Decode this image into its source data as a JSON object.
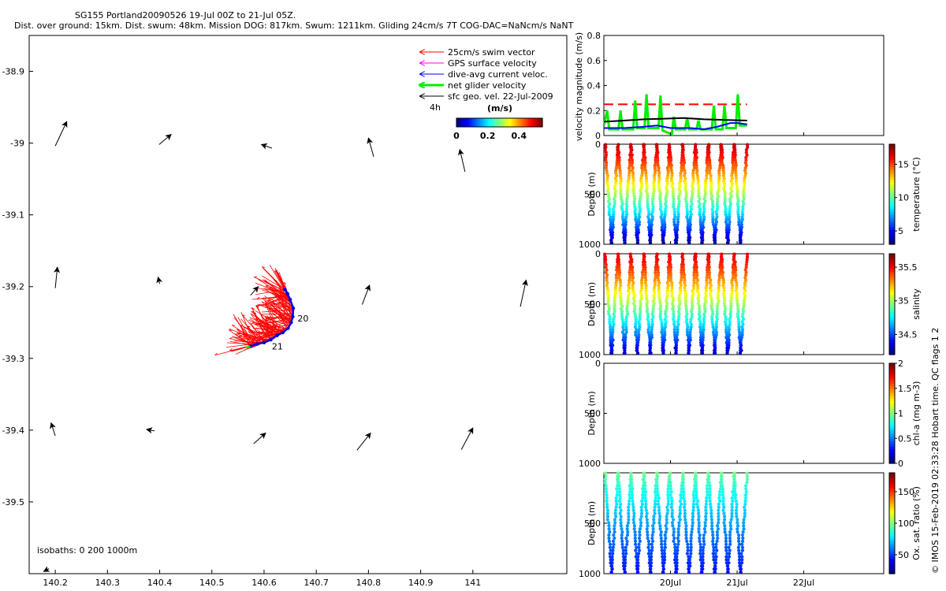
{
  "header": {
    "line1": "SG155 Portland20090526 19-Jul 00Z to 21-Jul 05Z.",
    "line2": "Dist. over ground: 15km. Dist. swum: 48km. Mission DOG: 817km. Swum: 1211km. Gliding 24cm/s 7T COG-DAC=NaNcm/s NaNT"
  },
  "side_note": "© IMOS 15-Feb-2019 02:33:28 Hobart time. QC flags 1  2",
  "chart_data": [
    {
      "id": "map",
      "type": "scatter",
      "x_ticks": [
        "140.2",
        "140.3",
        "140.4",
        "140.5",
        "140.6",
        "140.7",
        "140.8",
        "140.9",
        "141"
      ],
      "y_ticks": [
        "-38.9",
        "-39",
        "-39.1",
        "-39.2",
        "-39.3",
        "-39.4",
        "-39.5"
      ],
      "xlim": [
        140.15,
        141.18
      ],
      "ylim": [
        -39.6,
        -38.85
      ],
      "legend": {
        "placement": "top-right",
        "items": [
          {
            "label": "25cm/s swim vector",
            "color": "#ff0000",
            "width": 1
          },
          {
            "label": "GPS surface velocity",
            "color": "#ff00ff",
            "width": 1
          },
          {
            "label": "dive-avg current veloc.",
            "color": "#0000ff",
            "width": 1
          },
          {
            "label": "net glider velocity",
            "color": "#00ee00",
            "width": 3
          },
          {
            "label": "sfc geo. vel. 22-Jul-2009",
            "color": "#000000",
            "width": 1
          }
        ],
        "scale_label": "4h"
      },
      "colorbar": {
        "title": "(m/s)",
        "ticks": [
          "0",
          "0.2",
          "0.4"
        ],
        "range": [
          0,
          0.55
        ]
      },
      "isobaths_label": "isobaths: 0   200  1000m",
      "day_labels": [
        {
          "text": "20",
          "lon": 140.664,
          "lat": -39.244
        },
        {
          "text": "21",
          "lon": 140.615,
          "lat": -39.283
        }
      ],
      "track": [
        [
          140.573,
          -39.283
        ],
        [
          140.587,
          -39.28
        ],
        [
          140.6,
          -39.278
        ],
        [
          140.613,
          -39.274
        ],
        [
          140.625,
          -39.268
        ],
        [
          140.636,
          -39.264
        ],
        [
          140.646,
          -39.258
        ],
        [
          140.652,
          -39.25
        ],
        [
          140.655,
          -39.242
        ],
        [
          140.656,
          -39.23
        ],
        [
          140.65,
          -39.218
        ],
        [
          140.645,
          -39.21
        ],
        [
          140.64,
          -39.204
        ]
      ],
      "green_track": [
        [
          140.566,
          -39.285
        ],
        [
          140.573,
          -39.283
        ]
      ],
      "geo_arrows": [
        [
          140.2,
          -39.004,
          0.022,
          0.034
        ],
        [
          140.399,
          -39.002,
          0.023,
          0.014
        ],
        [
          140.615,
          -39.007,
          -0.02,
          0.005
        ],
        [
          140.81,
          -39.019,
          -0.01,
          0.026
        ],
        [
          140.985,
          -39.04,
          -0.01,
          0.031
        ],
        [
          140.2,
          -39.202,
          0.004,
          0.029
        ],
        [
          140.4,
          -39.196,
          -0.003,
          0.009
        ],
        [
          140.574,
          -39.212,
          0.015,
          0.012
        ],
        [
          140.788,
          -39.225,
          0.014,
          0.027
        ],
        [
          141.091,
          -39.228,
          0.011,
          0.037
        ],
        [
          140.2,
          -39.408,
          -0.008,
          0.018
        ],
        [
          140.39,
          -39.401,
          -0.015,
          0.002
        ],
        [
          140.58,
          -39.419,
          0.023,
          0.015
        ],
        [
          140.778,
          -39.428,
          0.026,
          0.024
        ],
        [
          140.978,
          -39.427,
          0.022,
          0.03
        ],
        [
          140.188,
          -39.593,
          -0.01,
          -0.004
        ]
      ]
    },
    {
      "id": "velocity",
      "type": "line",
      "ylabel": "velocity magnitude (m/s)",
      "ylim": [
        0,
        0.8
      ],
      "y_ticks": [
        "0",
        "0.2",
        "0.4",
        "0.6",
        "0.8"
      ],
      "x_ticks": [
        "20Jul",
        "21Jul",
        "22Jul"
      ],
      "xlim_days": [
        19.0,
        23.2
      ],
      "series": [
        {
          "color": "#ff0000",
          "dash": "12,6",
          "width": 2,
          "points": [
            [
              19.0,
              0.25
            ],
            [
              21.15,
              0.25
            ]
          ]
        },
        {
          "color": "#00ee00",
          "width": 3,
          "points": [
            [
              19.0,
              0.08
            ],
            [
              19.05,
              0.2
            ],
            [
              19.08,
              0.05
            ],
            [
              19.22,
              0.05
            ],
            [
              19.25,
              0.2
            ],
            [
              19.28,
              0.05
            ],
            [
              19.44,
              0.05
            ],
            [
              19.47,
              0.28
            ],
            [
              19.5,
              0.06
            ],
            [
              19.61,
              0.06
            ],
            [
              19.64,
              0.33
            ],
            [
              19.67,
              0.06
            ],
            [
              19.82,
              0.06
            ],
            [
              19.85,
              0.32
            ],
            [
              19.88,
              0.04
            ],
            [
              20.02,
              0.01
            ],
            [
              20.05,
              0.15
            ],
            [
              20.08,
              0.05
            ],
            [
              20.22,
              0.05
            ],
            [
              20.25,
              0.14
            ],
            [
              20.28,
              0.05
            ],
            [
              20.39,
              0.05
            ],
            [
              20.42,
              0.12
            ],
            [
              20.45,
              0.05
            ],
            [
              20.62,
              0.05
            ],
            [
              20.65,
              0.24
            ],
            [
              20.68,
              0.05
            ],
            [
              20.78,
              0.05
            ],
            [
              20.81,
              0.24
            ],
            [
              20.84,
              0.06
            ],
            [
              20.98,
              0.06
            ],
            [
              21.01,
              0.33
            ],
            [
              21.04,
              0.08
            ],
            [
              21.15,
              0.08
            ]
          ]
        },
        {
          "color": "#000000",
          "width": 2,
          "points": [
            [
              19.0,
              0.11
            ],
            [
              19.3,
              0.12
            ],
            [
              19.6,
              0.13
            ],
            [
              19.9,
              0.135
            ],
            [
              20.2,
              0.14
            ],
            [
              20.5,
              0.13
            ],
            [
              20.8,
              0.125
            ],
            [
              21.15,
              0.12
            ]
          ]
        },
        {
          "color": "#0000ff",
          "width": 2,
          "points": [
            [
              19.0,
              0.06
            ],
            [
              19.3,
              0.06
            ],
            [
              19.6,
              0.07
            ],
            [
              19.8,
              0.08
            ],
            [
              20.0,
              0.06
            ],
            [
              20.3,
              0.06
            ],
            [
              20.5,
              0.05
            ],
            [
              20.7,
              0.07
            ],
            [
              20.9,
              0.1
            ],
            [
              21.0,
              0.1
            ],
            [
              21.15,
              0.09
            ]
          ]
        }
      ]
    },
    {
      "id": "temperature",
      "type": "scatter",
      "ylabel": "Depth (m)",
      "ylim": [
        0,
        1000
      ],
      "y_ticks": [
        "0",
        "500",
        "1000"
      ],
      "colorbar": {
        "label": "temperature (°C)",
        "range": [
          3,
          18
        ],
        "ticks": [
          "5",
          "10",
          "15"
        ],
        "tick_values": [
          5,
          10,
          15
        ]
      },
      "profile": {
        "top_value": 17,
        "bottom_value": 3.5,
        "top_depth": 5,
        "bottom_depth": 985,
        "curve": 1.2
      }
    },
    {
      "id": "salinity",
      "type": "scatter",
      "ylabel": "Depth (m)",
      "ylim": [
        0,
        1000
      ],
      "y_ticks": [
        "0",
        "500",
        "1000"
      ],
      "colorbar": {
        "label": "salinity",
        "range": [
          34.2,
          35.7
        ],
        "ticks": [
          "34.5",
          "35",
          "35.5"
        ],
        "tick_values": [
          34.5,
          35,
          35.5
        ]
      },
      "profile": {
        "top_value": 35.55,
        "bottom_value": 34.3,
        "top_depth": 5,
        "bottom_depth": 985,
        "curve": 1.2
      }
    },
    {
      "id": "chlorophyll",
      "type": "scatter",
      "ylabel": "Depth (m)",
      "ylim": [
        0,
        1000
      ],
      "y_ticks": [
        "0",
        "500",
        "1000"
      ],
      "colorbar": {
        "label": "chl-a (mg m-3)",
        "range": [
          0,
          2
        ],
        "ticks": [
          "0",
          "0.5",
          "1",
          "1.5",
          "2"
        ],
        "tick_values": [
          0,
          0.5,
          1,
          1.5,
          2
        ]
      },
      "profile": null
    },
    {
      "id": "oxygen",
      "type": "scatter",
      "ylabel": "Depth (m)",
      "ylim": [
        0,
        1000
      ],
      "y_ticks": [
        "500",
        "1000"
      ],
      "colorbar": {
        "label": "Ox. sat. ratio (%)",
        "range": [
          20,
          180
        ],
        "ticks": [
          "50",
          "100",
          "150"
        ],
        "tick_values": [
          50,
          100,
          150
        ]
      },
      "profile": {
        "top_value": 98,
        "bottom_value": 42,
        "top_depth": 5,
        "bottom_depth": 985,
        "curve": 0.8
      }
    }
  ]
}
